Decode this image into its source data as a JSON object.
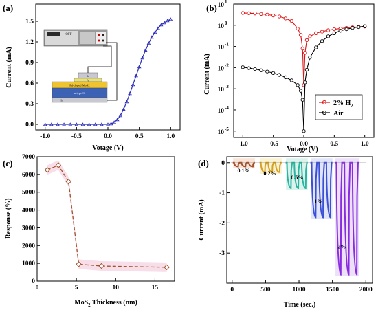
{
  "panels": {
    "a": {
      "label": "(a)"
    },
    "b": {
      "label": "(b)"
    },
    "c": {
      "label": "(c)"
    },
    "d": {
      "label": "(d)"
    }
  },
  "colors": {
    "blue": "#2d2db8",
    "red": "#e01010",
    "black": "#000000",
    "brown": "#a0522d",
    "pink_band": "#f5d3e2",
    "purple": "#7a2fe0"
  },
  "device": {
    "layers": [
      "In",
      "Pd",
      "Pd-doped MoS2",
      "n-type Si",
      "In"
    ],
    "meter_display": "OFF"
  },
  "chart_data": [
    {
      "id": "a",
      "type": "line",
      "title": "",
      "xlabel": "Votage (V)",
      "ylabel": "Current (mA)",
      "xlim": [
        -1.15,
        1.15
      ],
      "ylim": [
        -0.08,
        1.75
      ],
      "xticks": [
        "-1.0",
        "-0.5",
        "0.0",
        "0.5",
        "1.0"
      ],
      "yticks": [
        "0.0",
        "0.3",
        "0.6",
        "0.9",
        "1.2",
        "1.5"
      ],
      "series": [
        {
          "x": [
            -1.0,
            -0.9,
            -0.8,
            -0.7,
            -0.6,
            -0.5,
            -0.4,
            -0.3,
            -0.2,
            -0.1,
            0.0,
            0.05,
            0.1,
            0.15,
            0.2,
            0.25,
            0.3,
            0.35,
            0.4,
            0.45,
            0.5,
            0.55,
            0.6,
            0.65,
            0.7,
            0.75,
            0.8,
            0.85,
            0.9,
            0.95,
            1.0
          ],
          "y": [
            0.0,
            0.0,
            0.0,
            0.0,
            0.0,
            0.0,
            0.0,
            0.0,
            0.0,
            0.0,
            0.0,
            0.01,
            0.03,
            0.07,
            0.13,
            0.22,
            0.33,
            0.45,
            0.58,
            0.71,
            0.84,
            0.97,
            1.08,
            1.18,
            1.27,
            1.34,
            1.4,
            1.45,
            1.48,
            1.51,
            1.53
          ]
        }
      ]
    },
    {
      "id": "b",
      "type": "line",
      "title": "",
      "xlabel": "Votage (V)",
      "ylabel": "Current (mA)",
      "y_scale": "log",
      "xlim": [
        -1.15,
        1.15
      ],
      "ylim_exp": [
        -5.3,
        1.0
      ],
      "xticks": [
        "-1.0",
        "-0.5",
        "0.0",
        "0.5",
        "1.0"
      ],
      "yticks": [
        "10",
        "10",
        "10",
        "10",
        "10",
        "10",
        "10"
      ],
      "ytick_exponents": [
        "1",
        "0",
        "-1",
        "-2",
        "-3",
        "-4",
        "-5"
      ],
      "legend": {
        "position": "bottom-right",
        "entries": [
          "2% H",
          "Air"
        ],
        "subscript": "2"
      },
      "series": [
        {
          "name": "2% H2",
          "x": [
            -1.0,
            -0.9,
            -0.8,
            -0.7,
            -0.6,
            -0.5,
            -0.4,
            -0.3,
            -0.2,
            -0.1,
            -0.05,
            -0.02,
            0.0,
            0.02,
            0.05,
            0.1,
            0.2,
            0.3,
            0.4,
            0.5,
            0.6,
            0.7,
            0.8,
            0.9,
            1.0
          ],
          "y": [
            3.8,
            3.7,
            3.6,
            3.4,
            3.2,
            2.9,
            2.6,
            2.1,
            1.6,
            0.7,
            0.35,
            0.08,
            0.0015,
            0.05,
            0.2,
            0.3,
            0.42,
            0.5,
            0.58,
            0.65,
            0.7,
            0.75,
            0.8,
            0.84,
            0.87
          ]
        },
        {
          "name": "Air",
          "x": [
            -1.0,
            -0.9,
            -0.8,
            -0.7,
            -0.6,
            -0.5,
            -0.4,
            -0.3,
            -0.2,
            -0.1,
            -0.05,
            -0.02,
            0.0,
            0.02,
            0.05,
            0.1,
            0.2,
            0.3,
            0.4,
            0.5,
            0.6,
            0.7,
            0.8,
            0.9,
            1.0
          ],
          "y": [
            0.0105,
            0.0095,
            0.0085,
            0.0075,
            0.0065,
            0.0055,
            0.0045,
            0.0035,
            0.0025,
            0.0015,
            0.0008,
            0.0003,
            1e-05,
            0.002,
            0.008,
            0.03,
            0.09,
            0.18,
            0.3,
            0.42,
            0.55,
            0.65,
            0.75,
            0.82,
            0.9
          ]
        }
      ]
    },
    {
      "id": "c",
      "type": "line",
      "title": "",
      "xlabel": "MoS2 Thickness (nm)",
      "ylabel": "Response (%)",
      "xlim": [
        0,
        17.5
      ],
      "ylim": [
        0,
        7000
      ],
      "xticks": [
        "0",
        "5",
        "10",
        "15"
      ],
      "yticks": [
        "0",
        "1000",
        "2000",
        "3000",
        "4000",
        "5000",
        "6000",
        "7000"
      ],
      "series": [
        {
          "x": [
            1.3,
            2.7,
            4.0,
            5.3,
            8.2,
            16.5
          ],
          "y": [
            6250,
            6520,
            5600,
            950,
            850,
            780
          ]
        }
      ]
    },
    {
      "id": "d",
      "type": "line",
      "title": "",
      "xlabel": "Time (sec.)",
      "ylabel": "Current (mA)",
      "xlim": [
        -80,
        2100
      ],
      "ylim": [
        -4.0,
        0.2
      ],
      "xticks": [
        "0",
        "500",
        "1000",
        "1500",
        "2000"
      ],
      "yticks": [
        "0",
        "-1",
        "-2",
        "-3"
      ],
      "annotations": [
        "0.1%",
        "0.2%",
        "0.5%",
        "1%",
        "2%"
      ],
      "pulses": [
        {
          "group": "0.1%",
          "starts": [
            30,
            140,
            250
          ],
          "width": 60,
          "depth": -0.13,
          "color": "#a0522d"
        },
        {
          "group": "0.2%",
          "starts": [
            430,
            540,
            650
          ],
          "width": 60,
          "depth": -0.32,
          "color": "#d6a020"
        },
        {
          "group": "0.5%",
          "starts": [
            820,
            930,
            1040
          ],
          "width": 60,
          "depth": -0.85,
          "color": "#2bb5a0"
        },
        {
          "group": "1%",
          "starts": [
            1190,
            1300,
            1410
          ],
          "width": 60,
          "depth": -1.82,
          "color": "#3a4fd8"
        },
        {
          "group": "2%",
          "starts": [
            1560,
            1680,
            1800
          ],
          "width": 65,
          "depth": -3.72,
          "color": "#8a2be2"
        }
      ]
    }
  ]
}
